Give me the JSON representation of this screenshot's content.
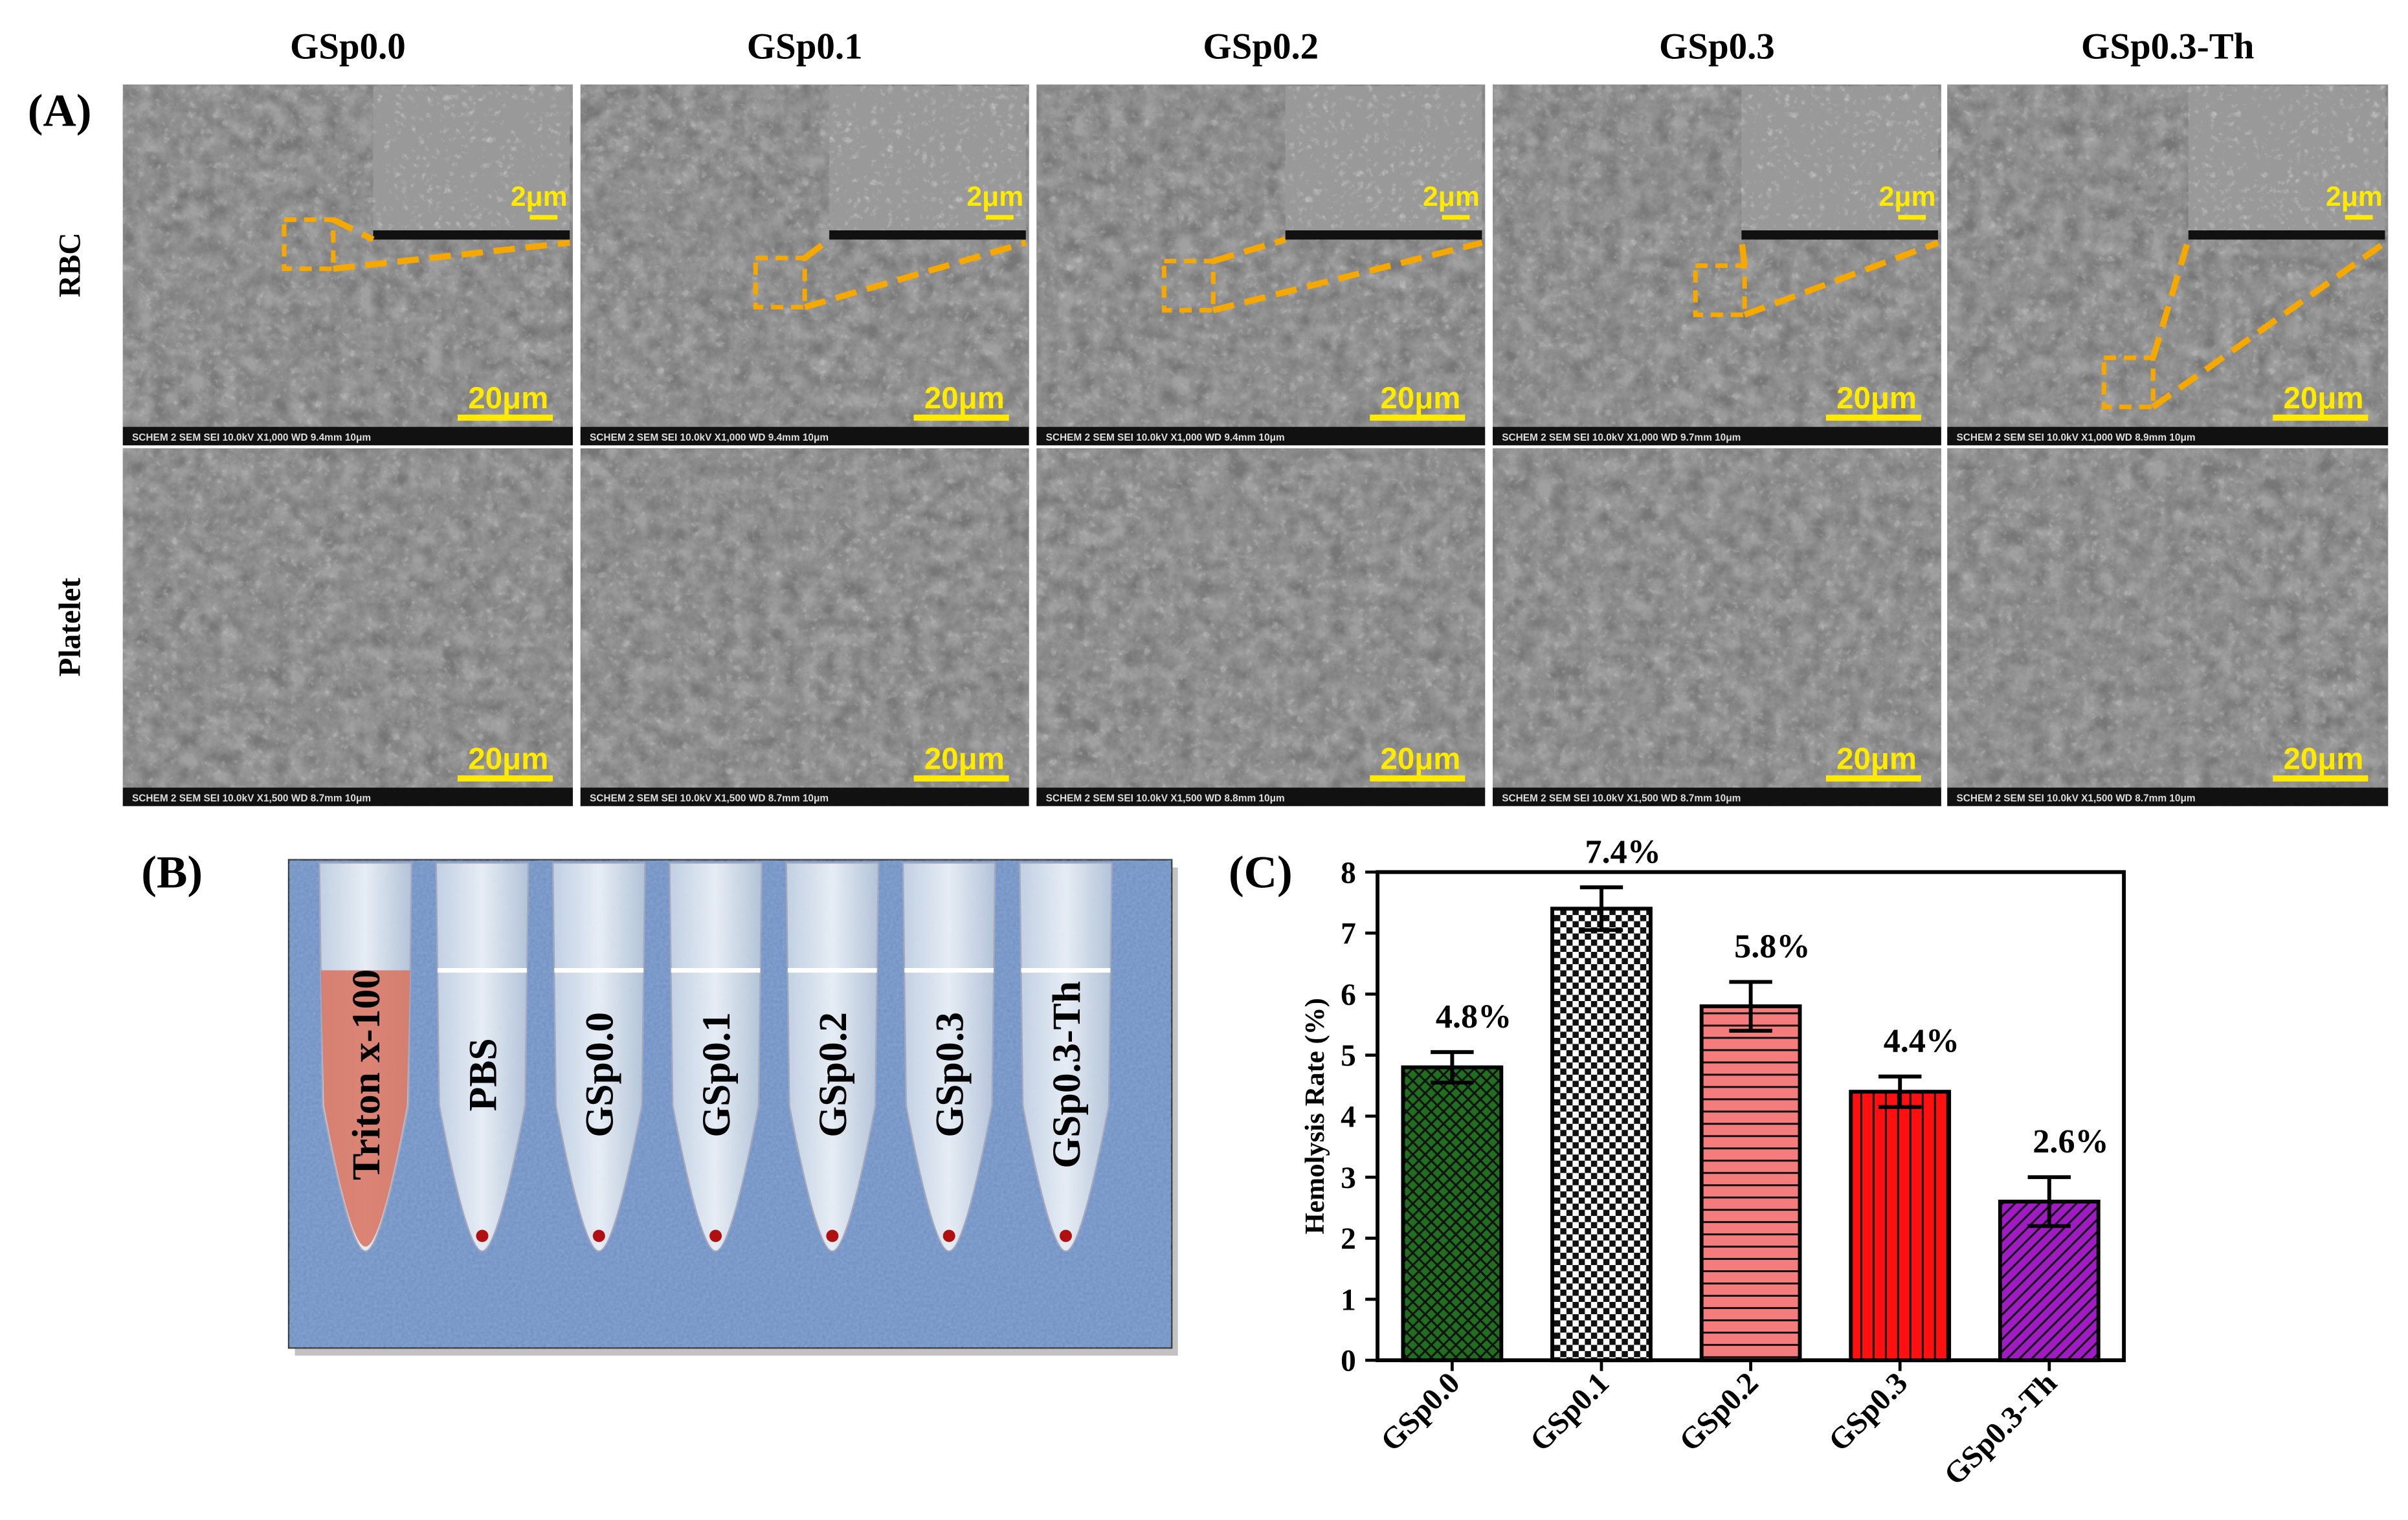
{
  "panel_a": {
    "label": "(A)",
    "columns": [
      "GSp0.0",
      "GSp0.1",
      "GSp0.2",
      "GSp0.3",
      "GSp0.3-Th"
    ],
    "rows": [
      "RBC",
      "Platelet"
    ],
    "images": [
      [
        {
          "scale": "20μm",
          "inset_scale": "2μm",
          "info": "SCHEM  2  SEM  SEI  10.0kV  X1,000  WD 9.4mm  10μm"
        },
        {
          "scale": "20μm",
          "inset_scale": "2μm",
          "info": "SCHEM  2  SEM  SEI  10.0kV  X1,000  WD 9.4mm  10μm"
        },
        {
          "scale": "20μm",
          "inset_scale": "2μm",
          "info": "SCHEM  2  SEM  SEI  10.0kV  X1,000  WD 9.4mm  10μm"
        },
        {
          "scale": "20μm",
          "inset_scale": "2μm",
          "info": "SCHEM  2  SEM  SEI  10.0kV  X1,000  WD 9.7mm  10μm"
        },
        {
          "scale": "20μm",
          "inset_scale": "2μm",
          "info": "SCHEM  2  SEM  SEI  10.0kV  X1,000  WD 8.9mm  10μm"
        }
      ],
      [
        {
          "scale": "20μm",
          "info": "SCHEM  2  SEM  SEI  10.0kV  X1,500  WD 8.7mm  10μm"
        },
        {
          "scale": "20μm",
          "info": "SCHEM  2  SEM  SEI  10.0kV  X1,500  WD 8.7mm  10μm"
        },
        {
          "scale": "20μm",
          "info": "SCHEM  2  SEM  SEI  10.0kV  X1,500  WD 8.8mm  10μm"
        },
        {
          "scale": "20μm",
          "info": "SCHEM  2  SEM  SEI  10.0kV  X1,500  WD 8.7mm  10μm"
        },
        {
          "scale": "20μm",
          "info": "SCHEM  2  SEM  SEI  10.0kV  X1,500  WD 8.7mm  10μm"
        }
      ]
    ]
  },
  "panel_b": {
    "label": "(B)",
    "tubes": [
      "Triton x-100",
      "PBS",
      "GSp0.0",
      "GSp0.1",
      "GSp0.2",
      "GSp0.3",
      "GSp0.3-Th"
    ]
  },
  "chart_data": {
    "type": "bar",
    "label": "(C)",
    "y_label": "Hemolysis Rate (%)",
    "categories": [
      "GSp0.0",
      "GSp0.1",
      "GSp0.2",
      "GSp0.3",
      "GSp0.3-Th"
    ],
    "values": [
      4.8,
      7.4,
      5.8,
      4.4,
      2.6
    ],
    "value_labels": [
      "4.8%",
      "7.4%",
      "5.8%",
      "4.4%",
      "2.6%"
    ],
    "errors": [
      0.25,
      0.35,
      0.4,
      0.25,
      0.4
    ],
    "colors": [
      "#1f6f1f",
      "#f4c6c6",
      "#f47c7c",
      "#ff1010",
      "#a11bc4"
    ],
    "patterns": [
      "crosshatch",
      "checker",
      "hlines",
      "vlines",
      "diagonal"
    ],
    "ylim": [
      0,
      8
    ],
    "yticks": [
      0,
      1,
      2,
      3,
      4,
      5,
      6,
      7,
      8
    ]
  }
}
